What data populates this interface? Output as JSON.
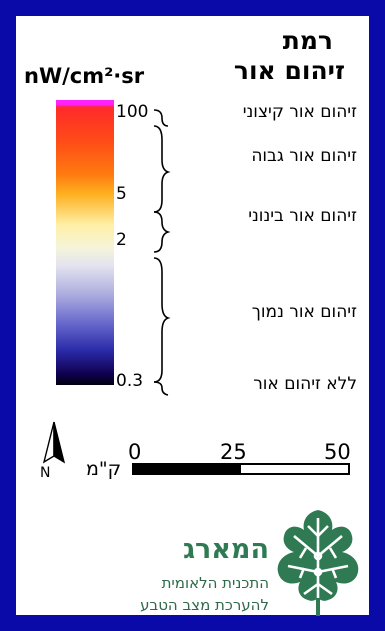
{
  "legend": {
    "title_line1": "רמת",
    "title_line2": "זיהום אור",
    "unit": "nW/cm²·sr",
    "ramp_colors": [
      "#ff22ff",
      "#ff2a2a",
      "#ff7a10",
      "#ffb020",
      "#fff0a8",
      "#f4f4da",
      "#aeaede",
      "#6a6ace",
      "#2a2aa8",
      "#000010"
    ],
    "ticks": [
      "100",
      "5",
      "2",
      "0.3"
    ],
    "categories": [
      "זיהום אור קיצוני",
      "זיהום אור גבוה",
      "זיהום אור בינוני",
      "זיהום אור נמוך",
      "ללא זיהום אור"
    ]
  },
  "north_arrow": {
    "label": "N"
  },
  "scale_bar": {
    "labels": [
      "0",
      "25",
      "50"
    ],
    "unit": "ק\"מ"
  },
  "branding": {
    "name": "המארג",
    "line1": "התכנית הלאומית",
    "line2": "להערכת מצב הטבע",
    "logo_icon": "fig-leaf-icon",
    "logo_color": "#2f7a52"
  },
  "colors": {
    "frame": "#0a0aa8",
    "panel": "#ffffff"
  }
}
